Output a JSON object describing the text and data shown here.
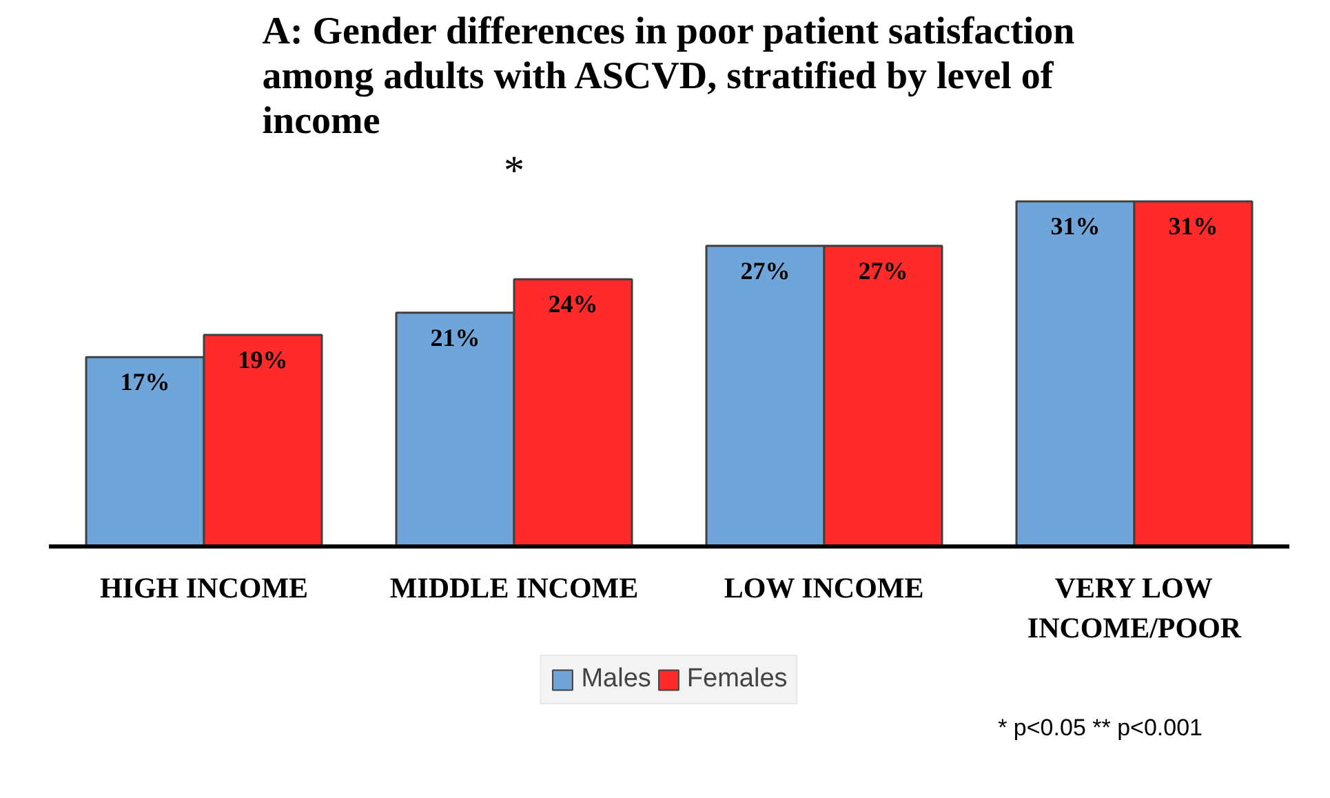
{
  "chart_data": {
    "type": "bar",
    "title": "A: Gender differences in poor patient satisfaction among adults with ASCVD, stratified by level of income",
    "categories": [
      "HIGH INCOME",
      "MIDDLE INCOME",
      "LOW INCOME",
      "VERY LOW INCOME/POOR"
    ],
    "series": [
      {
        "name": "Males",
        "color": "#70a5da",
        "values": [
          17,
          21,
          27,
          31
        ],
        "value_labels": [
          "17%",
          "21%",
          "27%",
          "31%"
        ]
      },
      {
        "name": "Females",
        "color": "#ff2a2a",
        "values": [
          19,
          24,
          27,
          31
        ],
        "value_labels": [
          "19%",
          "24%",
          "27%",
          "31%"
        ]
      }
    ],
    "tick_labels": "x",
    "grid": false,
    "legend": "bottom",
    "annotations": [
      "*",
      "* p<0.05 ** p<0.001"
    ]
  }
}
